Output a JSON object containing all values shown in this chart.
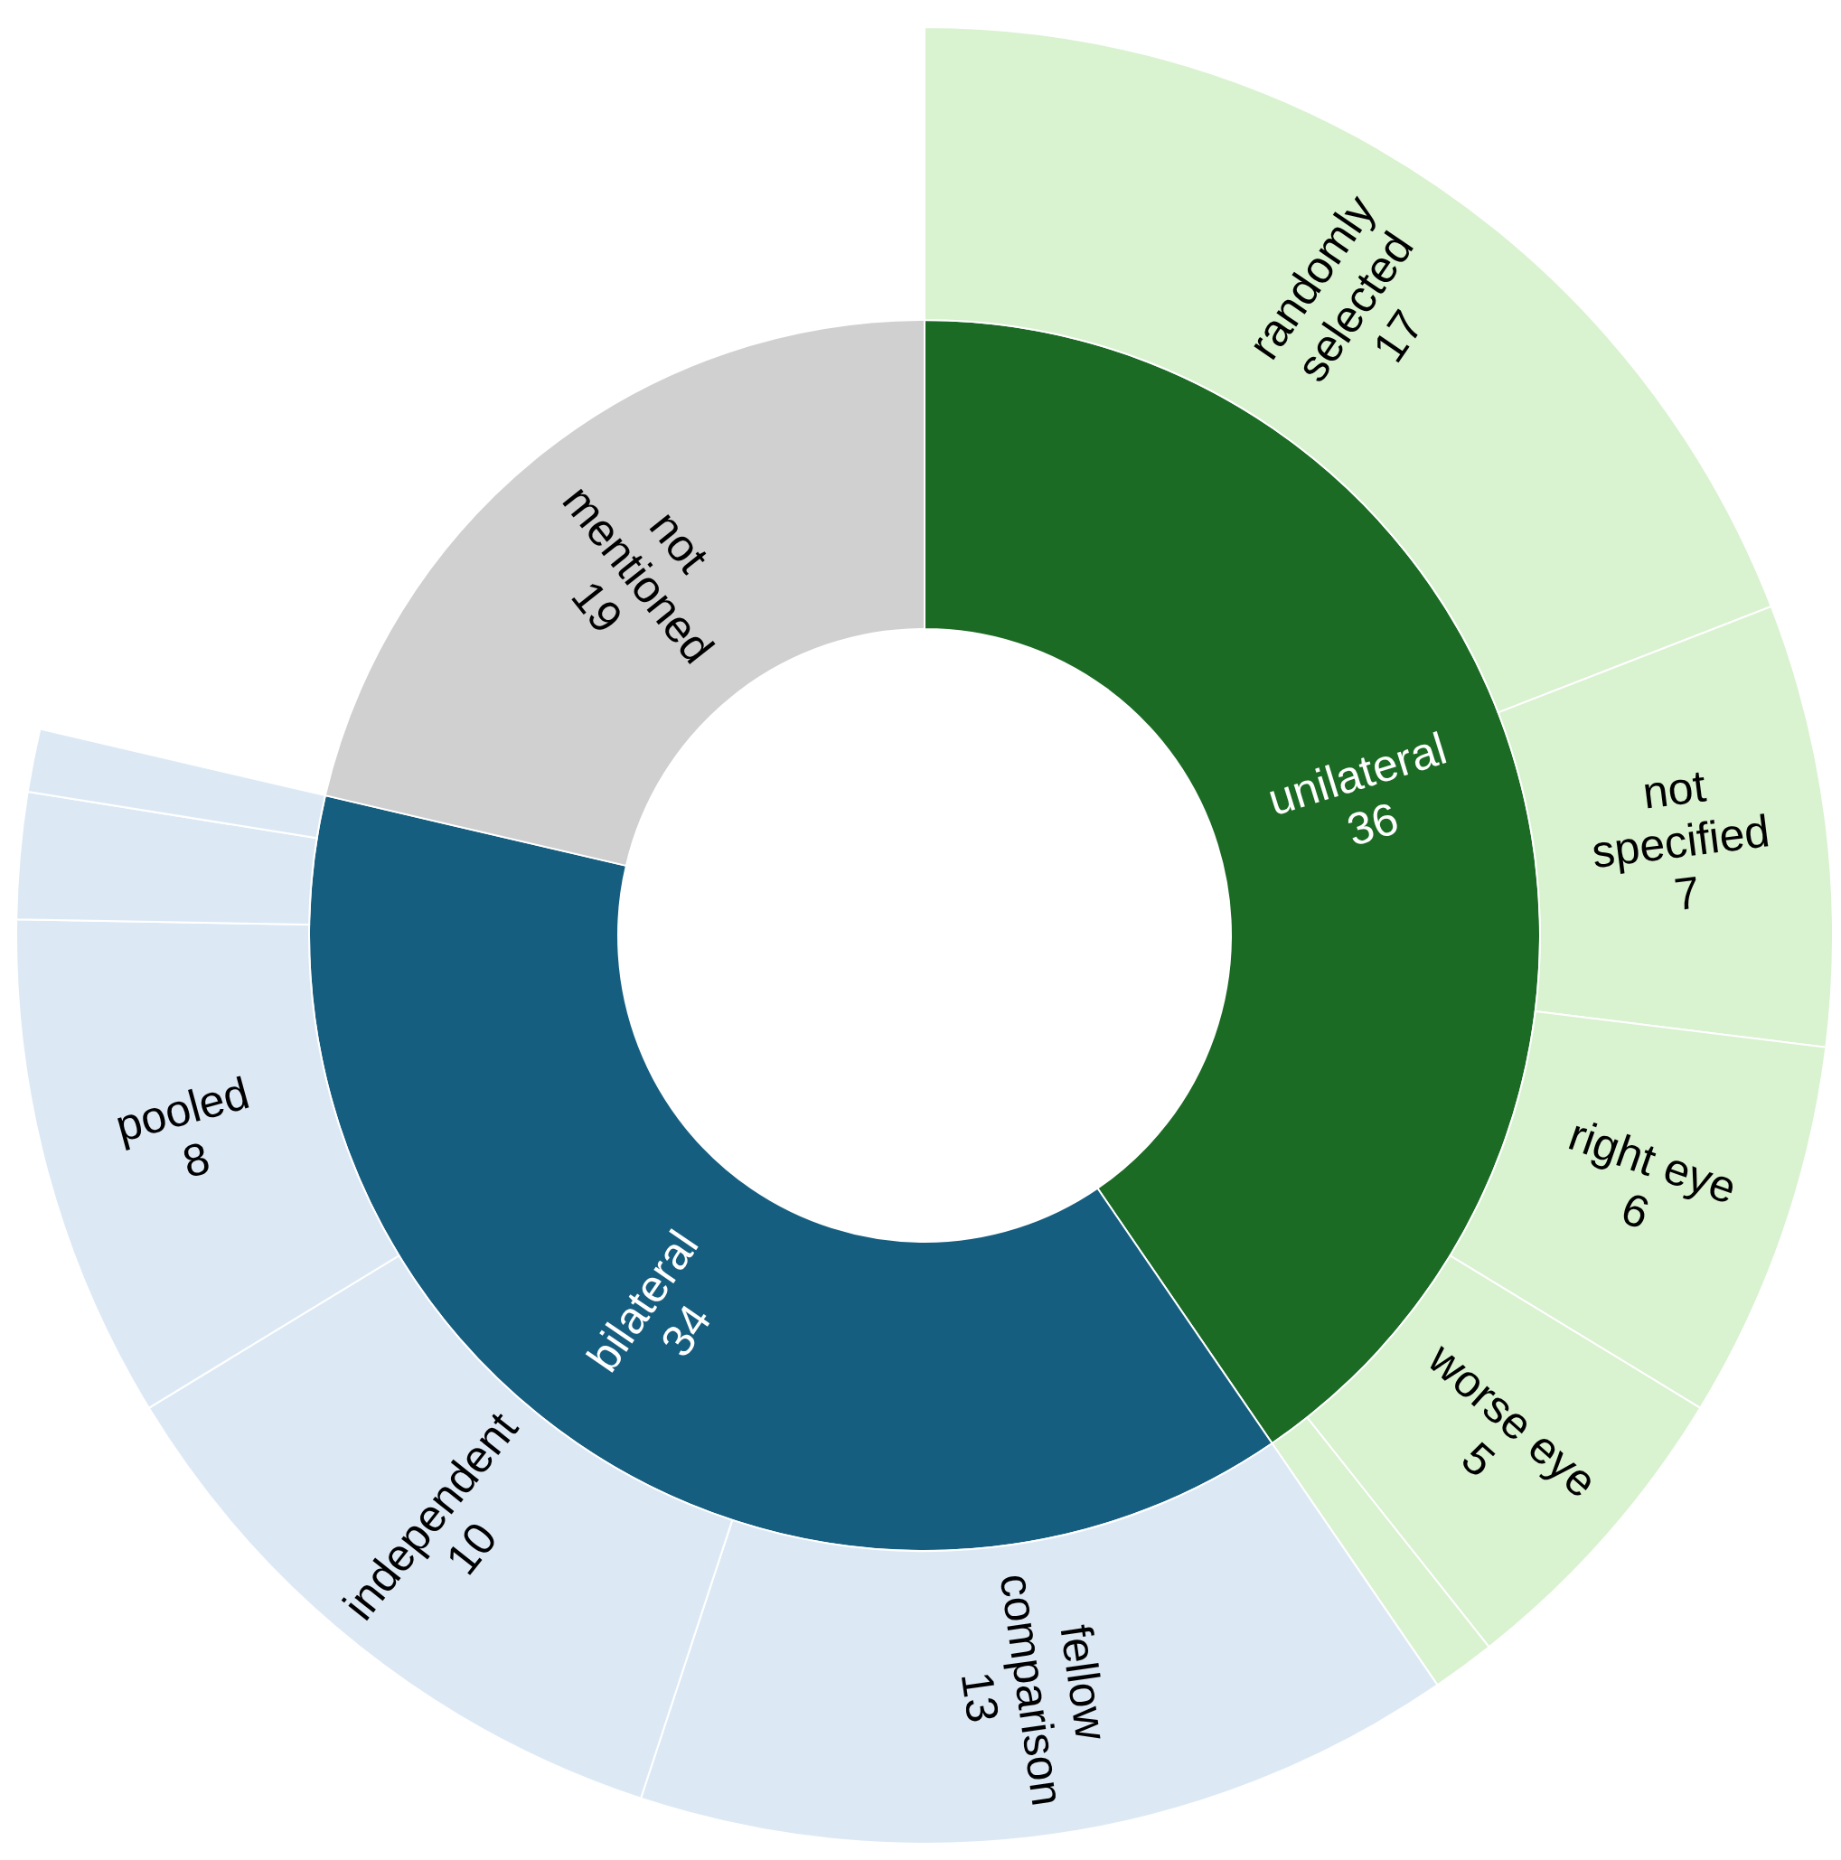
{
  "chart_data": [
    {
      "type": "donut",
      "categories": [
        "unilateral",
        "bilateral",
        "not mentioned"
      ],
      "values": [
        36,
        34,
        19
      ],
      "colors": [
        "#1b6b24",
        "#165e80",
        "#d0d0d0"
      ],
      "value_labels": [
        "36",
        "34",
        "19"
      ]
    },
    {
      "type": "donut",
      "categories": [
        "randomly selected",
        "not specified",
        "right eye",
        "worse eye",
        null,
        "fellow comparison",
        "independent",
        "pooled",
        null,
        null
      ],
      "values": [
        17,
        7,
        6,
        5,
        1,
        13,
        10,
        8,
        2,
        1
      ],
      "colors": [
        "#d9f2d0",
        "#d9f2d0",
        "#d9f2d0",
        "#d9f2d0",
        "#d9f2d0",
        "#dce9f5",
        "#dce9f5",
        "#dce9f5",
        "#dce9f5",
        "#dce9f5"
      ],
      "value_labels": [
        "17",
        "7",
        "6",
        "5",
        null,
        "13",
        "10",
        "8",
        null,
        null
      ]
    }
  ]
}
